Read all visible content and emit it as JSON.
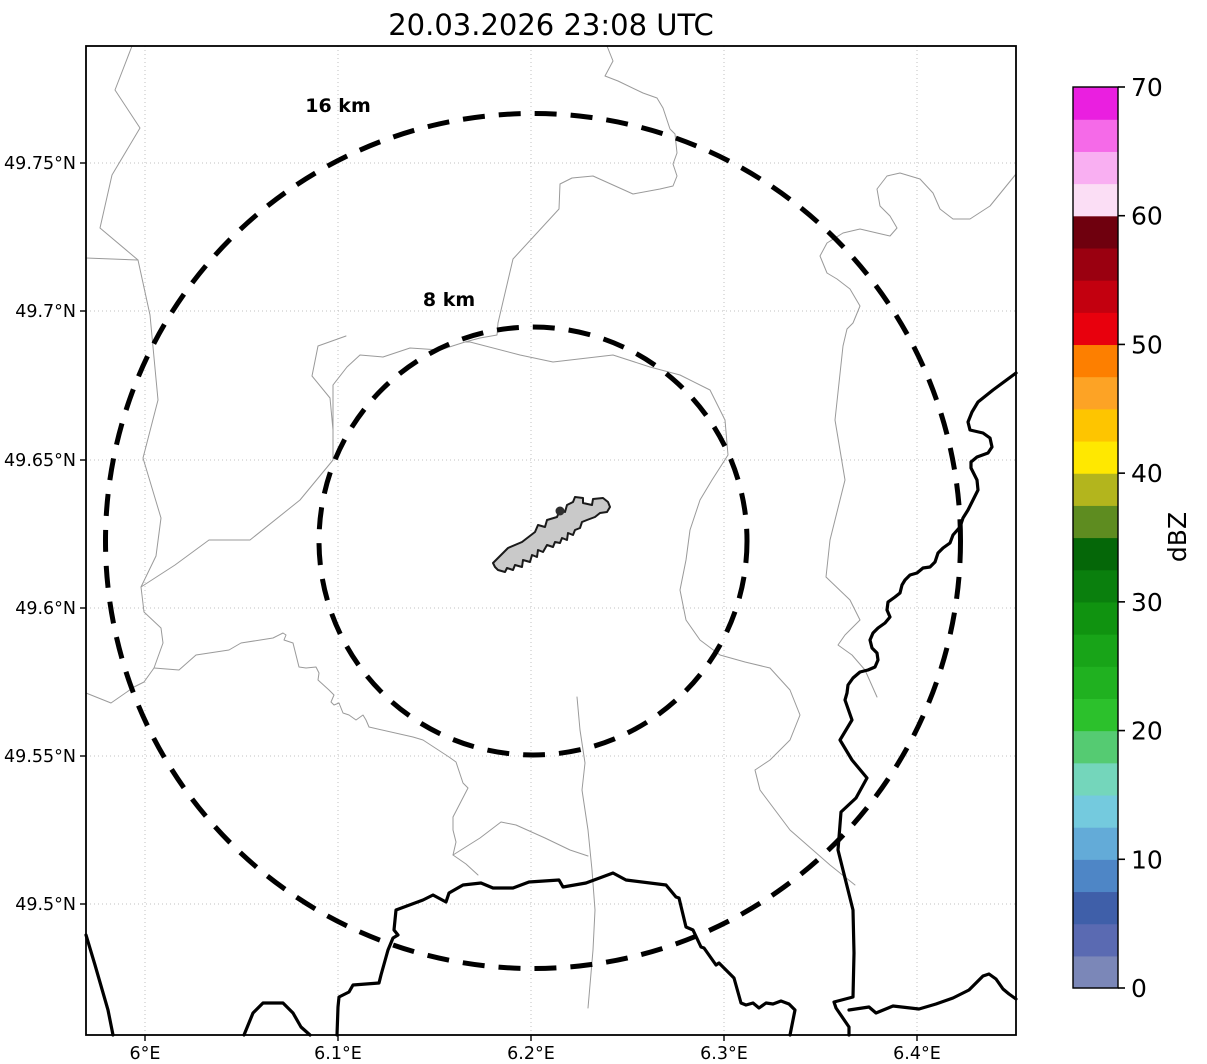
{
  "title": "20.03.2026 23:08 UTC",
  "map": {
    "x_tick_labels": [
      "6°E",
      "6.1°E",
      "6.2°E",
      "6.3°E",
      "6.4°E"
    ],
    "y_tick_labels": [
      "49.75°N",
      "49.7°N",
      "49.65°N",
      "49.6°N",
      "49.55°N",
      "49.5°N"
    ],
    "range_rings": [
      {
        "label": "8 km",
        "radius_km": 8
      },
      {
        "label": "16 km",
        "radius_km": 16
      }
    ]
  },
  "colorbar": {
    "unit_label": "dBZ",
    "min": 0,
    "max": 70,
    "band_step": 2.5,
    "tick_labels": [
      "0",
      "10",
      "20",
      "30",
      "40",
      "50",
      "60",
      "70"
    ],
    "band_colors": [
      "#7b87b8",
      "#5a6ab2",
      "#3f5fa9",
      "#4e86c6",
      "#63abd8",
      "#74cade",
      "#74d6bb",
      "#55cb72",
      "#2cc12c",
      "#20b120",
      "#18a418",
      "#109310",
      "#0a7f0d",
      "#056708",
      "#5e8c20",
      "#b3b51d",
      "#ffe800",
      "#fec500",
      "#fda325",
      "#fd7f00",
      "#e8000d",
      "#c3000f",
      "#9a0010",
      "#6f000e",
      "#fbdef5",
      "#f9aff2",
      "#f56ae8",
      "#ea1fe0"
    ]
  },
  "chart_data": {
    "type": "map",
    "title": "20.03.2026 23:08 UTC",
    "projection": "lon-lat grid",
    "x_axis": {
      "tick_labels": [
        "6°E",
        "6.1°E",
        "6.2°E",
        "6.3°E",
        "6.4°E"
      ],
      "range_deg_e": [
        5.969,
        6.452
      ]
    },
    "y_axis": {
      "tick_labels": [
        "49.75°N",
        "49.7°N",
        "49.65°N",
        "49.6°N",
        "49.55°N",
        "49.5°N"
      ],
      "range_deg_n": [
        49.455,
        49.79
      ]
    },
    "grid": "dotted, on",
    "range_rings": [
      {
        "label": "8 km",
        "radius_km": 8,
        "center": {
          "lon_e": 6.201,
          "lat_n": 49.622
        }
      },
      {
        "label": "16 km",
        "radius_km": 16,
        "center": {
          "lon_e": 6.201,
          "lat_n": 49.622
        }
      }
    ],
    "colorbar": {
      "label": "dBZ",
      "range": [
        0,
        70
      ],
      "labeled_tick_step": 10,
      "n_discrete_bands": 28,
      "band_step": 2.5
    },
    "radar_echoes_shown": "none (map background only)",
    "map_features": [
      "airport footprint polygon (gray) at ring center",
      "thick national border lines",
      "thin administrative boundary lines"
    ]
  }
}
